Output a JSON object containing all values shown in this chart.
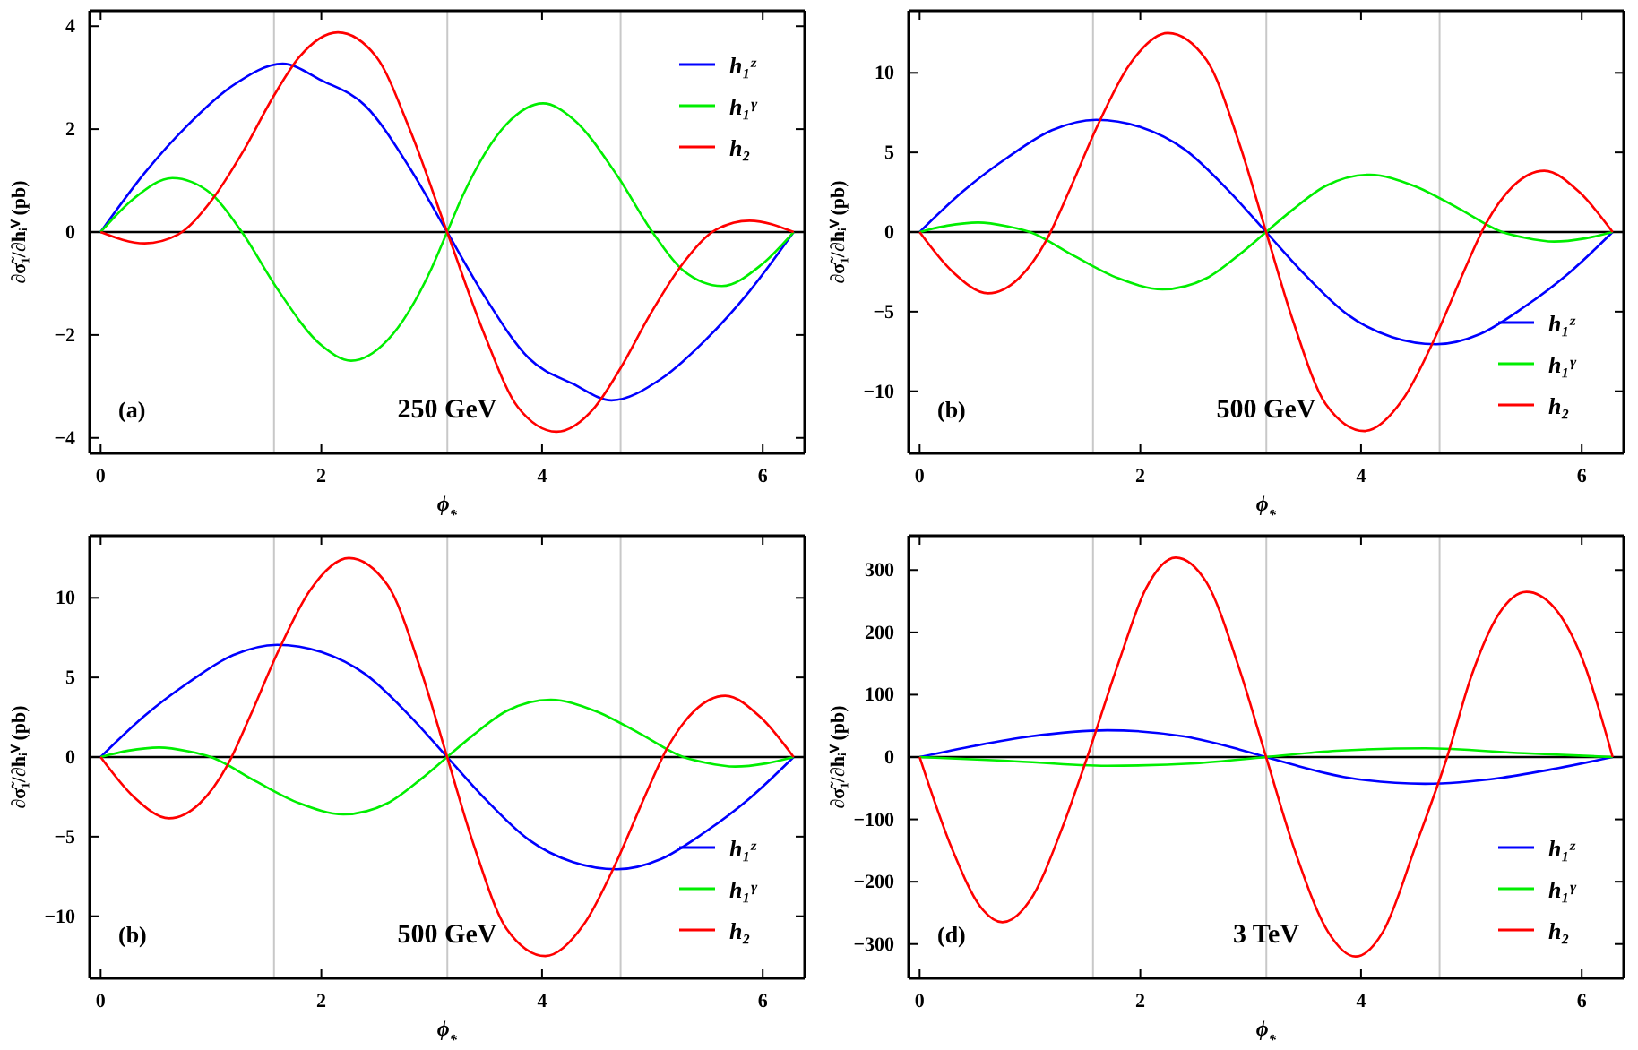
{
  "chart_data": [
    {
      "type": "line",
      "xlabel": "ϕ$_{*}$",
      "ylabel": "∂σ̃₁/∂hᵢⱽ (pb)",
      "xlim": [
        -0.1,
        6.38
      ],
      "ylim": [
        -4.3,
        4.3
      ],
      "xticks": [
        0,
        2,
        4,
        6
      ],
      "yticks": [
        -4,
        -2,
        0,
        2,
        4
      ],
      "legend": "top right",
      "annotations": [
        "(a)",
        "250 GeV"
      ],
      "ref_lines": [
        {
          "axis": "x",
          "value": 1.571,
          "color": "#c8c8c8"
        },
        {
          "axis": "x",
          "value": 3.142,
          "color": "#c8c8c8"
        },
        {
          "axis": "x",
          "value": 4.712,
          "color": "#c8c8c8"
        },
        {
          "axis": "y",
          "value": 0,
          "color": "#000000"
        }
      ],
      "series": [
        {
          "name": "h₁ᶻ",
          "color": "#0000ff",
          "x": [
            0,
            0.4,
            0.8,
            1.2,
            1.65,
            2.0,
            2.4,
            2.8,
            3.14,
            3.48,
            3.88,
            4.28,
            4.63,
            5.08,
            5.48,
            5.88,
            6.28
          ],
          "values": [
            0,
            1.15,
            2.1,
            2.85,
            3.27,
            2.95,
            2.45,
            1.25,
            0,
            -1.25,
            -2.45,
            -2.95,
            -3.27,
            -2.85,
            -2.1,
            -1.15,
            0
          ]
        },
        {
          "name": "h₁ᵞ",
          "color": "#00ee00",
          "x": [
            0,
            0.3,
            0.65,
            1.0,
            1.28,
            1.6,
            2.0,
            2.27,
            2.6,
            3.0,
            3.14,
            3.28,
            3.68,
            4.01,
            4.28,
            4.68,
            5.0,
            5.28,
            5.63,
            5.98,
            6.28
          ],
          "values": [
            0,
            0.65,
            1.05,
            0.75,
            0,
            -1.1,
            -2.2,
            -2.5,
            -2.1,
            -0.7,
            0,
            0.7,
            2.1,
            2.5,
            2.2,
            1.1,
            0,
            -0.75,
            -1.05,
            -0.65,
            0
          ]
        },
        {
          "name": "h₂",
          "color": "#ff0000",
          "x": [
            0,
            0.4,
            0.7,
            1.0,
            1.3,
            1.57,
            1.8,
            2.15,
            2.5,
            2.8,
            3.14,
            3.48,
            3.78,
            4.13,
            4.48,
            4.71,
            4.98,
            5.28,
            5.58,
            5.88,
            6.28
          ],
          "values": [
            0,
            -0.22,
            -0.05,
            0.6,
            1.6,
            2.65,
            3.4,
            3.88,
            3.4,
            2.0,
            0,
            -2.0,
            -3.4,
            -3.88,
            -3.4,
            -2.65,
            -1.6,
            -0.6,
            0.05,
            0.22,
            0
          ]
        }
      ]
    },
    {
      "type": "line",
      "xlabel": "ϕ$_{*}$",
      "ylabel": "∂σ̃₁/∂hᵢⱽ (pb)",
      "xlim": [
        -0.1,
        6.38
      ],
      "ylim": [
        -13.9,
        13.9
      ],
      "xticks": [
        0,
        2,
        4,
        6
      ],
      "yticks": [
        -10,
        -5,
        0,
        5,
        10
      ],
      "legend": "bottom right",
      "annotations": [
        "(b)",
        "500 GeV"
      ],
      "ref_lines": [
        {
          "axis": "x",
          "value": 1.571,
          "color": "#c8c8c8"
        },
        {
          "axis": "x",
          "value": 3.142,
          "color": "#c8c8c8"
        },
        {
          "axis": "x",
          "value": 4.712,
          "color": "#c8c8c8"
        },
        {
          "axis": "y",
          "value": 0,
          "color": "#000000"
        }
      ],
      "series": [
        {
          "name": "h₁ᶻ",
          "color": "#0000ff",
          "x": [
            0,
            0.4,
            0.8,
            1.2,
            1.6,
            2.0,
            2.4,
            2.8,
            3.14,
            3.48,
            3.88,
            4.28,
            4.68,
            5.08,
            5.48,
            5.88,
            6.28
          ],
          "values": [
            0,
            2.6,
            4.7,
            6.4,
            7.05,
            6.6,
            5.2,
            2.6,
            0,
            -2.6,
            -5.2,
            -6.6,
            -7.05,
            -6.4,
            -4.7,
            -2.6,
            0
          ]
        },
        {
          "name": "h₁ᵞ",
          "color": "#00ee00",
          "x": [
            0,
            0.25,
            0.53,
            0.8,
            1.0,
            1.4,
            1.8,
            2.2,
            2.6,
            2.9,
            3.14,
            3.38,
            3.68,
            4.08,
            4.48,
            4.88,
            5.28,
            5.48,
            5.75,
            6.03,
            6.28
          ],
          "values": [
            0,
            0.4,
            0.6,
            0.35,
            0,
            -1.5,
            -2.9,
            -3.6,
            -2.9,
            -1.4,
            0,
            1.4,
            2.9,
            3.6,
            2.9,
            1.5,
            0,
            -0.35,
            -0.6,
            -0.4,
            0
          ]
        },
        {
          "name": "h₂",
          "color": "#ff0000",
          "x": [
            0,
            0.3,
            0.62,
            0.9,
            1.15,
            1.35,
            1.6,
            1.9,
            2.25,
            2.6,
            2.9,
            3.14,
            3.38,
            3.68,
            4.03,
            4.38,
            4.68,
            4.93,
            5.13,
            5.38,
            5.66,
            5.98,
            6.28
          ],
          "values": [
            0,
            -2.5,
            -3.85,
            -2.9,
            -0.5,
            2.5,
            6.5,
            10.5,
            12.5,
            10.8,
            5.5,
            0,
            -5.5,
            -10.8,
            -12.5,
            -10.5,
            -6.5,
            -2.5,
            0.5,
            2.9,
            3.85,
            2.5,
            0
          ]
        }
      ]
    },
    {
      "type": "line",
      "xlabel": "ϕ$_{*}$",
      "ylabel": "∂σ̃₁/∂hᵢⱽ (pb)",
      "xlim": [
        -0.1,
        6.38
      ],
      "ylim": [
        -13.9,
        13.9
      ],
      "xticks": [
        0,
        2,
        4,
        6
      ],
      "yticks": [
        -10,
        -5,
        0,
        5,
        10
      ],
      "legend": "bottom right",
      "annotations": [
        "(b)",
        "500 GeV"
      ],
      "ref_lines": [
        {
          "axis": "x",
          "value": 1.571,
          "color": "#c8c8c8"
        },
        {
          "axis": "x",
          "value": 3.142,
          "color": "#c8c8c8"
        },
        {
          "axis": "x",
          "value": 4.712,
          "color": "#c8c8c8"
        },
        {
          "axis": "y",
          "value": 0,
          "color": "#000000"
        }
      ],
      "series": [
        {
          "name": "h₁ᶻ",
          "color": "#0000ff",
          "x": [
            0,
            0.4,
            0.8,
            1.2,
            1.6,
            2.0,
            2.4,
            2.8,
            3.14,
            3.48,
            3.88,
            4.28,
            4.68,
            5.08,
            5.48,
            5.88,
            6.28
          ],
          "values": [
            0,
            2.6,
            4.7,
            6.4,
            7.05,
            6.6,
            5.2,
            2.6,
            0,
            -2.6,
            -5.2,
            -6.6,
            -7.05,
            -6.4,
            -4.7,
            -2.6,
            0
          ]
        },
        {
          "name": "h₁ᵞ",
          "color": "#00ee00",
          "x": [
            0,
            0.25,
            0.53,
            0.8,
            1.0,
            1.4,
            1.8,
            2.2,
            2.6,
            2.9,
            3.14,
            3.38,
            3.68,
            4.08,
            4.48,
            4.88,
            5.28,
            5.48,
            5.75,
            6.03,
            6.28
          ],
          "values": [
            0,
            0.4,
            0.6,
            0.35,
            0,
            -1.5,
            -2.9,
            -3.6,
            -2.9,
            -1.4,
            0,
            1.4,
            2.9,
            3.6,
            2.9,
            1.5,
            0,
            -0.35,
            -0.6,
            -0.4,
            0
          ]
        },
        {
          "name": "h₂",
          "color": "#ff0000",
          "x": [
            0,
            0.3,
            0.62,
            0.9,
            1.15,
            1.35,
            1.6,
            1.9,
            2.25,
            2.6,
            2.9,
            3.14,
            3.38,
            3.68,
            4.03,
            4.38,
            4.68,
            4.93,
            5.13,
            5.38,
            5.66,
            5.98,
            6.28
          ],
          "values": [
            0,
            -2.5,
            -3.85,
            -2.9,
            -0.5,
            2.5,
            6.5,
            10.5,
            12.5,
            10.8,
            5.5,
            0,
            -5.5,
            -10.8,
            -12.5,
            -10.5,
            -6.5,
            -2.5,
            0.5,
            2.9,
            3.85,
            2.5,
            0
          ]
        }
      ]
    },
    {
      "type": "line",
      "xlabel": "ϕ$_{*}$",
      "ylabel": "∂σ̃₁/∂hᵢⱽ (pb)",
      "xlim": [
        -0.1,
        6.38
      ],
      "ylim": [
        -355,
        355
      ],
      "xticks": [
        0,
        2,
        4,
        6
      ],
      "yticks": [
        -300,
        -200,
        -100,
        0,
        100,
        200,
        300
      ],
      "legend": "bottom right",
      "annotations": [
        "(d)",
        "3 TeV"
      ],
      "ref_lines": [
        {
          "axis": "x",
          "value": 1.571,
          "color": "#c8c8c8"
        },
        {
          "axis": "x",
          "value": 3.142,
          "color": "#c8c8c8"
        },
        {
          "axis": "x",
          "value": 4.712,
          "color": "#c8c8c8"
        },
        {
          "axis": "y",
          "value": 0,
          "color": "#000000"
        }
      ],
      "series": [
        {
          "name": "h₁ᶻ",
          "color": "#0000ff",
          "x": [
            0,
            0.5,
            1.0,
            1.7,
            2.4,
            2.9,
            3.14,
            3.38,
            3.88,
            4.58,
            5.28,
            5.78,
            6.28
          ],
          "values": [
            0,
            18,
            33,
            43,
            33,
            12,
            0,
            -12,
            -33,
            -43,
            -33,
            -18,
            0
          ]
        },
        {
          "name": "h₁ᵞ",
          "color": "#00ee00",
          "x": [
            0,
            0.8,
            1.7,
            2.5,
            3.14,
            3.78,
            4.58,
            5.48,
            6.28
          ],
          "values": [
            0,
            -6,
            -14,
            -10,
            0,
            10,
            14,
            6,
            0
          ]
        },
        {
          "name": "h₂",
          "color": "#ff0000",
          "x": [
            0,
            0.3,
            0.55,
            0.75,
            1.0,
            1.3,
            1.5,
            1.8,
            2.05,
            2.32,
            2.6,
            2.9,
            3.14,
            3.4,
            3.7,
            3.95,
            4.2,
            4.5,
            4.78,
            5.0,
            5.25,
            5.5,
            5.75,
            6.0,
            6.28
          ],
          "values": [
            0,
            -150,
            -240,
            -265,
            -230,
            -110,
            -10,
            150,
            270,
            320,
            280,
            140,
            0,
            -150,
            -280,
            -320,
            -280,
            -140,
            0,
            130,
            230,
            265,
            240,
            160,
            0
          ]
        }
      ]
    }
  ]
}
